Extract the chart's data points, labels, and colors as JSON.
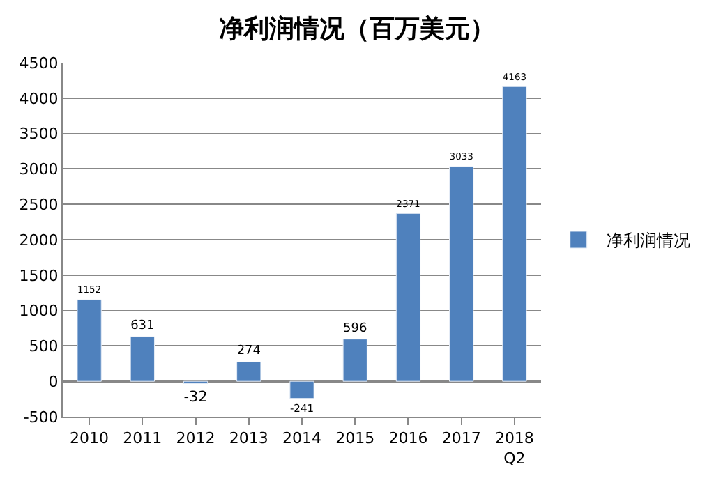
{
  "chart_data": {
    "type": "bar",
    "title": "净利润情况（百万美元）",
    "categories": [
      "2010",
      "2011",
      "2012",
      "2013",
      "2014",
      "2015",
      "2016",
      "2017",
      "2018 Q2"
    ],
    "series": [
      {
        "name": "净利润情况",
        "color": "#4f81bd",
        "values": [
          1152,
          631,
          -32,
          274,
          -241,
          596,
          2371,
          3033,
          4163
        ]
      }
    ],
    "ylim": [
      -500,
      4500
    ],
    "yticks": [
      -500,
      0,
      500,
      1000,
      1500,
      2000,
      2500,
      3000,
      3500,
      4000,
      4500
    ],
    "grid": "y",
    "legend": "right",
    "data_labels": true
  }
}
